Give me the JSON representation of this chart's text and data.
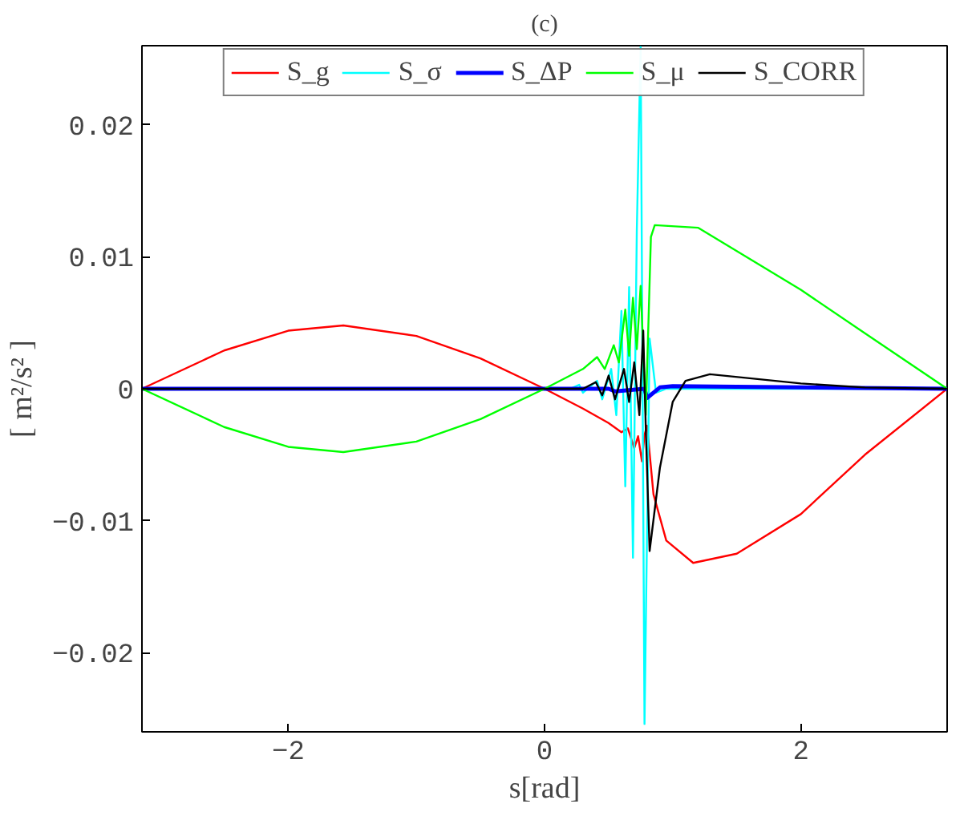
{
  "chart_data": {
    "type": "line",
    "title": "(c)",
    "xlabel": "s[rad]",
    "ylabel": "[ m²/s² ]",
    "xlim": [
      -3.1416,
      3.1416
    ],
    "ylim": [
      -0.026,
      0.026
    ],
    "xticks": [
      -2,
      0,
      2
    ],
    "yticks": [
      -0.02,
      -0.01,
      0,
      0.01,
      0.02
    ],
    "grid": false,
    "legend": "top",
    "series": [
      {
        "name": "S_g",
        "color": "#ff0000",
        "x": [
          -3.1416,
          -2.5,
          -2,
          -1.57,
          -1,
          -0.5,
          0,
          0.3,
          0.5,
          0.6,
          0.65,
          0.7,
          0.73,
          0.76,
          0.78,
          0.8,
          0.85,
          0.95,
          1.16,
          1.5,
          2,
          2.5,
          3.1416
        ],
        "values": [
          0,
          0.0029,
          0.0044,
          0.0048,
          0.004,
          0.0023,
          0,
          -0.0015,
          -0.0026,
          -0.0033,
          -0.003,
          -0.0045,
          -0.0036,
          -0.0055,
          -0.0035,
          -0.0028,
          -0.008,
          -0.0115,
          -0.0132,
          -0.0125,
          -0.0095,
          -0.005,
          0
        ]
      },
      {
        "name": "S_σ",
        "color": "#00ffff",
        "x": [
          -3.1416,
          0.2,
          0.27,
          0.3,
          0.41,
          0.45,
          0.52,
          0.56,
          0.6,
          0.63,
          0.66,
          0.69,
          0.72,
          0.75,
          0.78,
          0.82,
          0.87,
          0.95,
          3.1416
        ],
        "values": [
          0,
          0,
          0.0003,
          -0.0003,
          0.0006,
          -0.0008,
          0.0015,
          -0.002,
          0.0059,
          -0.0074,
          0.0077,
          -0.0128,
          0.012,
          0.0259,
          -0.0254,
          0.0038,
          -0.0003,
          0,
          0
        ]
      },
      {
        "name": "S_ΔP",
        "color": "#0000ff",
        "x": [
          -3.1416,
          0.5,
          0.55,
          0.78,
          0.8,
          0.9,
          1.0,
          2,
          3.1416
        ],
        "values": [
          0,
          0,
          -0.0002,
          0,
          -0.0007,
          0.0001,
          0.0002,
          0.0001,
          0
        ]
      },
      {
        "name": "S_μ",
        "color": "#00ff00",
        "x": [
          -3.1416,
          -2.5,
          -2,
          -1.57,
          -1,
          -0.5,
          0,
          0.3,
          0.41,
          0.47,
          0.54,
          0.58,
          0.63,
          0.66,
          0.69,
          0.72,
          0.75,
          0.79,
          0.83,
          0.86,
          1.2,
          2,
          2.5,
          3.1416
        ],
        "values": [
          0,
          -0.0029,
          -0.0044,
          -0.0048,
          -0.004,
          -0.0023,
          0,
          0.0015,
          0.0024,
          0.0015,
          0.0033,
          0.002,
          0.006,
          0.0025,
          0.0069,
          0.003,
          0.0078,
          -0.002,
          0.0115,
          0.0124,
          0.0122,
          0.0075,
          0.0042,
          0
        ]
      },
      {
        "name": "S_CORR",
        "color": "#000000",
        "x": [
          -3.1416,
          0.3,
          0.4,
          0.45,
          0.5,
          0.55,
          0.62,
          0.66,
          0.7,
          0.74,
          0.77,
          0.79,
          0.82,
          0.9,
          1.0,
          1.1,
          1.29,
          1.6,
          2,
          2.5,
          3.1416
        ],
        "values": [
          0,
          0,
          0.0005,
          -0.0005,
          0.001,
          -0.0008,
          0.0015,
          -0.001,
          0.002,
          -0.002,
          0.0044,
          -0.003,
          -0.0123,
          -0.006,
          -0.001,
          0.0006,
          0.0011,
          0.0008,
          0.0004,
          0.0001,
          0
        ]
      }
    ]
  }
}
